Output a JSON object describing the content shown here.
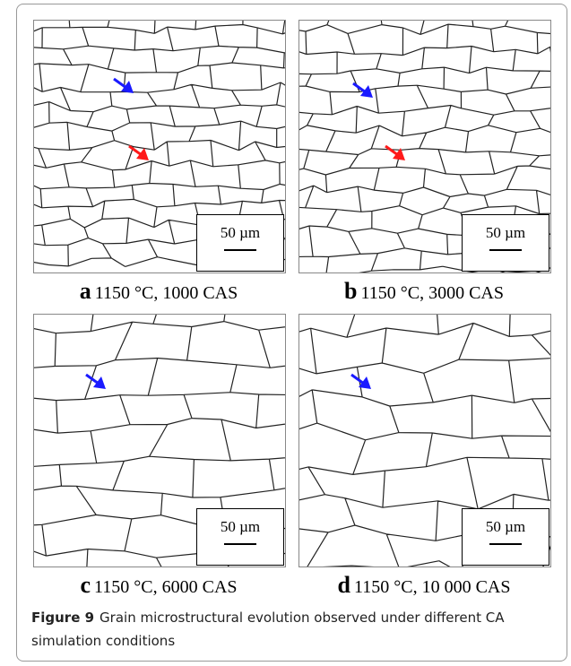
{
  "panels": [
    {
      "label": "a",
      "caption": "1150 °C, 1000 CAS",
      "scale": "50 µm"
    },
    {
      "label": "b",
      "caption": "1150 °C, 3000 CAS",
      "scale": "50 µm"
    },
    {
      "label": "c",
      "caption": "1150 °C, 6000 CAS",
      "scale": "50 µm"
    },
    {
      "label": "d",
      "caption": "1150 °C, 10 000 CAS",
      "scale": "50 µm"
    }
  ],
  "figure": {
    "label": "Figure 9",
    "text": "Grain microstructural evolution observed under different CA simulation conditions"
  }
}
